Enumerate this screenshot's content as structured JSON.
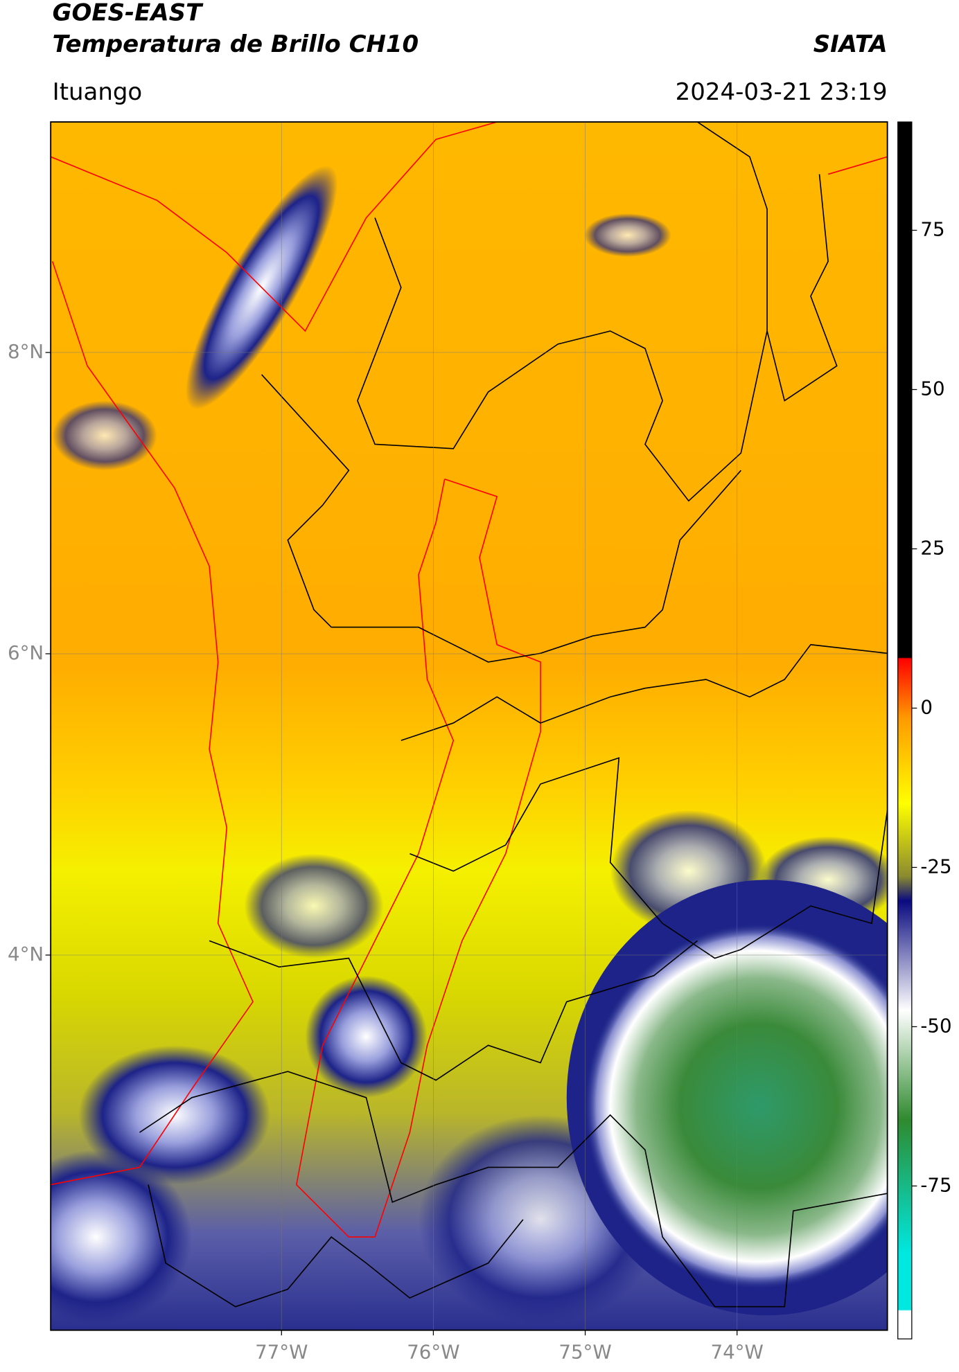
{
  "header": {
    "title": "GOES-EAST",
    "subtitle": "Temperatura de Brillo CH10",
    "source": "SIATA",
    "location": "Ituango",
    "datetime": "2024-03-21 23:19"
  },
  "map": {
    "xlim": [
      -78.52,
      -73.01
    ],
    "ylim": [
      1.51,
      9.53
    ],
    "xticks": [
      {
        "value": -77,
        "label": "77°W"
      },
      {
        "value": -76,
        "label": "76°W"
      },
      {
        "value": -75,
        "label": "75°W"
      },
      {
        "value": -74,
        "label": "74°W"
      }
    ],
    "yticks": [
      {
        "value": 8,
        "label": "8°N"
      },
      {
        "value": 6,
        "label": "6°N"
      },
      {
        "value": 4,
        "label": "4°N"
      }
    ],
    "grid": true
  },
  "colorbar": {
    "lim": [
      -99,
      92
    ],
    "ticks": [
      75,
      50,
      25,
      0,
      -25,
      -50,
      -75
    ]
  }
}
